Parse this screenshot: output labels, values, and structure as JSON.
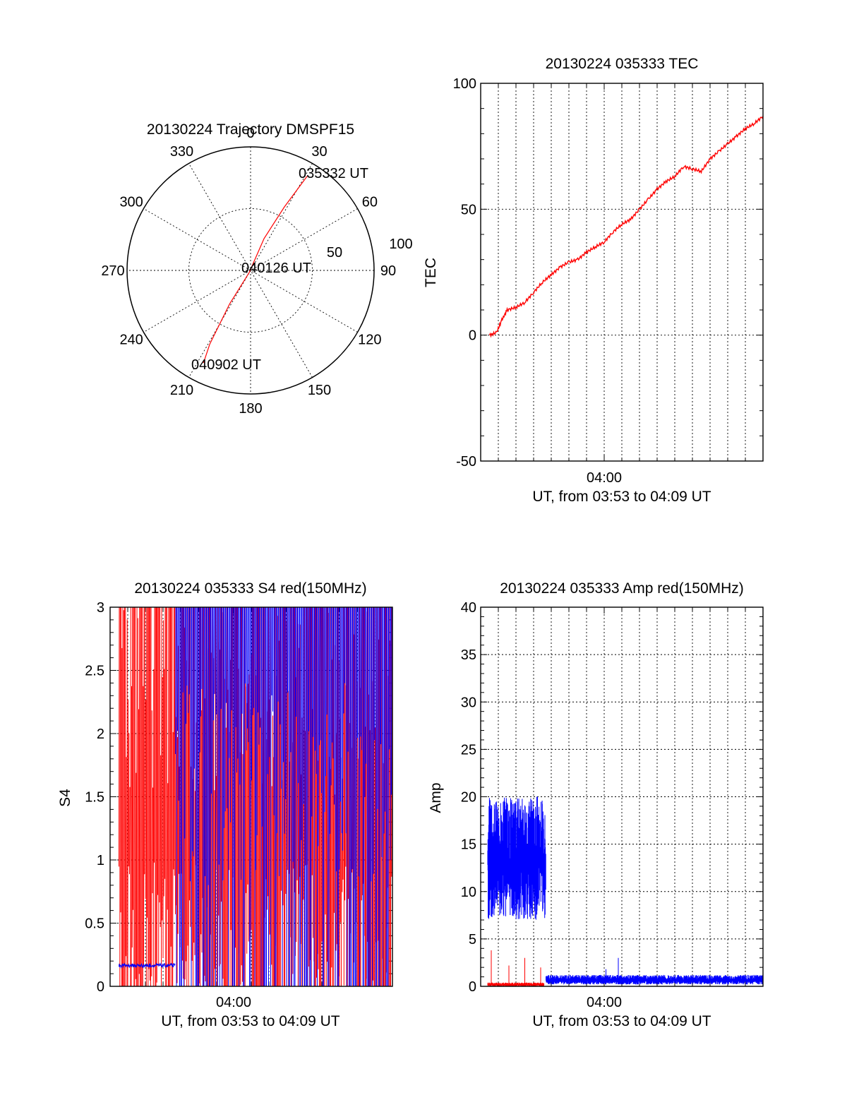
{
  "colors": {
    "red": "#ff0000",
    "blue": "#0000ff",
    "axis": "#000000"
  },
  "chart_data": [
    {
      "type": "polar",
      "title": "20130224 Trajectory DMSPF15",
      "angle_labels": [
        "0",
        "30",
        "60",
        "90",
        "120",
        "150",
        "180",
        "210",
        "240",
        "270",
        "300",
        "330"
      ],
      "radial_labels": [
        "50",
        "100"
      ],
      "rlim": [
        0,
        100
      ],
      "grid": true,
      "annotations": [
        "035332 UT",
        "040126 UT",
        "040902 UT"
      ],
      "series": [
        {
          "color": "red",
          "points": [
            {
              "az": 31,
              "zen": 89
            },
            {
              "az": 28,
              "zen": 58
            },
            {
              "az": 23,
              "zen": 28
            },
            {
              "az": 213,
              "zen": 2
            },
            {
              "az": 212,
              "zen": 32
            },
            {
              "az": 209,
              "zen": 68
            },
            {
              "az": 207,
              "zen": 84
            }
          ]
        }
      ]
    },
    {
      "type": "line",
      "title": "20130224 035333 TEC",
      "xlabel": "UT, from 03:53 to 04:09 UT",
      "ylabel": "TEC",
      "xlim": [
        0,
        16
      ],
      "ylim": [
        -50,
        100
      ],
      "yticks": [
        "-50",
        "0",
        "50",
        "100"
      ],
      "xtick_label": "04:00",
      "grid": true,
      "series": [
        {
          "color": "red",
          "points": [
            [
              0.5,
              0
            ],
            [
              0.9,
              1
            ],
            [
              1.2,
              6
            ],
            [
              1.5,
              10
            ],
            [
              2.0,
              11
            ],
            [
              2.5,
              13
            ],
            [
              3.0,
              17
            ],
            [
              3.5,
              21
            ],
            [
              4.0,
              24
            ],
            [
              4.5,
              27
            ],
            [
              5.0,
              29
            ],
            [
              5.5,
              30
            ],
            [
              6.0,
              33
            ],
            [
              6.5,
              35
            ],
            [
              7.0,
              37
            ],
            [
              7.5,
              41
            ],
            [
              8.0,
              44
            ],
            [
              8.5,
              46
            ],
            [
              9.0,
              50
            ],
            [
              9.5,
              54
            ],
            [
              10.0,
              58
            ],
            [
              10.5,
              61
            ],
            [
              11.0,
              63
            ],
            [
              11.5,
              67
            ],
            [
              12.0,
              66
            ],
            [
              12.5,
              65
            ],
            [
              13.0,
              70
            ],
            [
              13.5,
              73
            ],
            [
              14.0,
              76
            ],
            [
              14.5,
              79
            ],
            [
              15.0,
              82
            ],
            [
              15.5,
              84
            ],
            [
              16.0,
              87
            ]
          ]
        }
      ]
    },
    {
      "type": "line",
      "title": "20130224 035333 S4 red(150MHz)",
      "xlabel": "UT, from 03:53 to 04:09 UT",
      "ylabel": "S4",
      "xlim": [
        0,
        16
      ],
      "ylim": [
        0,
        3
      ],
      "yticks": [
        "0",
        "0.5",
        "1",
        "1.5",
        "2",
        "2.5",
        "3"
      ],
      "xtick_label": "04:00",
      "grid": true,
      "series": [
        {
          "color": "blue",
          "name": "",
          "description_range": "0.15 to 0.18 from 03:53 to 03:57, then oscillating 0 to 3 after 03:57"
        },
        {
          "color": "red",
          "name": "",
          "description_range": "oscillating 0 to 3 across the full interval"
        }
      ]
    },
    {
      "type": "line",
      "title": "20130224 035333 Amp red(150MHz)",
      "xlabel": "UT, from 03:53 to 04:09 UT",
      "ylabel": "Amp",
      "xlim": [
        0,
        16
      ],
      "ylim": [
        0,
        40
      ],
      "yticks": [
        "0",
        "5",
        "10",
        "15",
        "20",
        "25",
        "30",
        "35",
        "40"
      ],
      "xtick_label": "04:00",
      "grid": true,
      "series": [
        {
          "color": "blue",
          "segments": [
            {
              "x": [
                0.4,
                3.7
              ],
              "low": 7,
              "high": 20
            },
            {
              "x": [
                3.7,
                16
              ],
              "low": 0.2,
              "high": 1.2
            }
          ],
          "spikes": [
            [
              7.8,
              3.0
            ],
            [
              7.1,
              1.8
            ]
          ]
        },
        {
          "color": "red",
          "segments": [
            {
              "x": [
                0.4,
                3.6
              ],
              "low": 0.0,
              "high": 0.4
            }
          ],
          "spikes": [
            [
              0.6,
              3.8
            ],
            [
              1.6,
              2.2
            ],
            [
              2.5,
              3.0
            ],
            [
              3.4,
              2.0
            ]
          ]
        }
      ]
    }
  ]
}
